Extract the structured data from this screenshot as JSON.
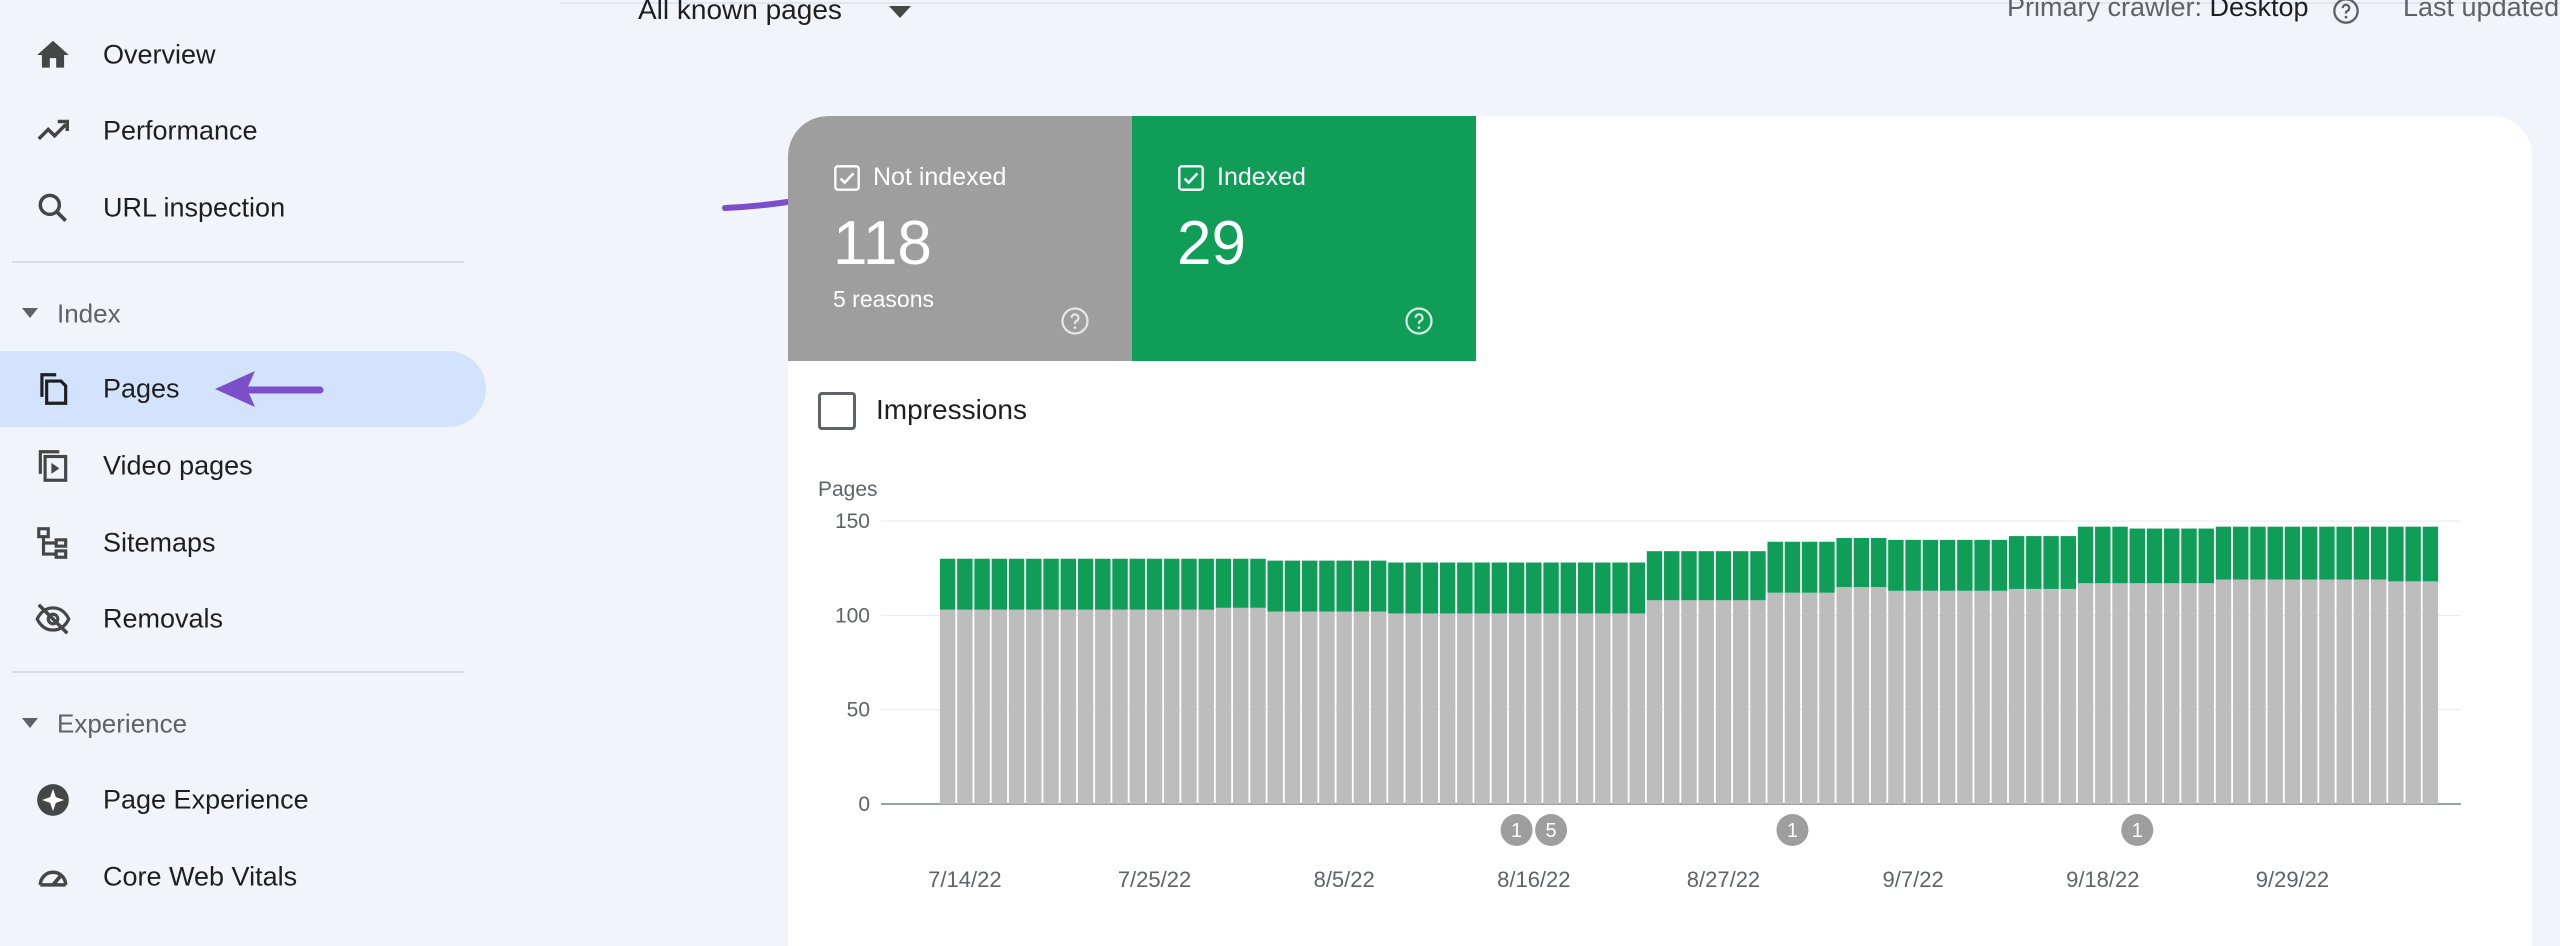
{
  "sidebar": {
    "items": [
      {
        "label": "Overview",
        "icon": "home-icon"
      },
      {
        "label": "Performance",
        "icon": "trending-up-icon"
      },
      {
        "label": "URL inspection",
        "icon": "search-icon"
      },
      {
        "label": "Pages",
        "icon": "pages-icon",
        "active": true
      },
      {
        "label": "Video pages",
        "icon": "video-pages-icon"
      },
      {
        "label": "Sitemaps",
        "icon": "sitemap-icon"
      },
      {
        "label": "Removals",
        "icon": "eye-off-icon"
      },
      {
        "label": "Page Experience",
        "icon": "page-experience-icon"
      },
      {
        "label": "Core Web Vitals",
        "icon": "gauge-icon"
      }
    ],
    "sections": {
      "index": "Index",
      "experience": "Experience"
    }
  },
  "toolbar": {
    "filter": "All known pages",
    "crawler_label": "Primary crawler: ",
    "crawler_value": "Desktop",
    "last_updated": "Last updated"
  },
  "tiles": {
    "not_indexed": {
      "label": "Not indexed",
      "value": "118",
      "sub": "5 reasons",
      "color": "#9e9e9e"
    },
    "indexed": {
      "label": "Indexed",
      "value": "29",
      "color": "#0f9d58"
    }
  },
  "impressions_label": "Impressions",
  "chart_data": {
    "type": "bar",
    "stacked": true,
    "ylabel": "Pages",
    "ylim": [
      0,
      150
    ],
    "yticks": [
      0,
      50,
      100,
      150
    ],
    "x_tick_labels": [
      "7/14/22",
      "7/25/22",
      "8/5/22",
      "8/16/22",
      "8/27/22",
      "9/7/22",
      "9/18/22",
      "9/29/22"
    ],
    "start_date": "7/13/22",
    "series": [
      {
        "name": "Not indexed",
        "color": "#bdbdbd",
        "values": [
          103,
          103,
          103,
          103,
          103,
          103,
          103,
          103,
          103,
          103,
          103,
          103,
          103,
          103,
          103,
          103,
          104,
          104,
          104,
          102,
          102,
          102,
          102,
          102,
          102,
          102,
          101,
          101,
          101,
          101,
          101,
          101,
          101,
          101,
          101,
          101,
          101,
          101,
          101,
          101,
          101,
          108,
          108,
          108,
          108,
          108,
          108,
          108,
          112,
          112,
          112,
          112,
          115,
          115,
          115,
          113,
          113,
          113,
          113,
          113,
          113,
          113,
          114,
          114,
          114,
          114,
          117,
          117,
          117,
          117,
          117,
          117,
          117,
          117,
          119,
          119,
          119,
          119,
          119,
          119,
          119,
          119,
          119,
          119,
          118,
          118,
          118
        ]
      },
      {
        "name": "Indexed",
        "color": "#0f9d58",
        "values": [
          27,
          27,
          27,
          27,
          27,
          27,
          27,
          27,
          27,
          27,
          27,
          27,
          27,
          27,
          27,
          27,
          26,
          26,
          26,
          27,
          27,
          27,
          27,
          27,
          27,
          27,
          27,
          27,
          27,
          27,
          27,
          27,
          27,
          27,
          27,
          27,
          27,
          27,
          27,
          27,
          27,
          26,
          26,
          26,
          26,
          26,
          26,
          26,
          27,
          27,
          27,
          27,
          26,
          26,
          26,
          27,
          27,
          27,
          27,
          27,
          27,
          27,
          28,
          28,
          28,
          28,
          30,
          30,
          30,
          29,
          29,
          29,
          29,
          29,
          28,
          28,
          28,
          28,
          28,
          28,
          28,
          28,
          28,
          28,
          29,
          29,
          29
        ]
      }
    ],
    "annotations": [
      {
        "date": "8/15/22",
        "label": "1"
      },
      {
        "date": "8/17/22",
        "label": "5"
      },
      {
        "date": "8/31/22",
        "label": "1"
      },
      {
        "date": "9/20/22",
        "label": "1"
      }
    ]
  }
}
